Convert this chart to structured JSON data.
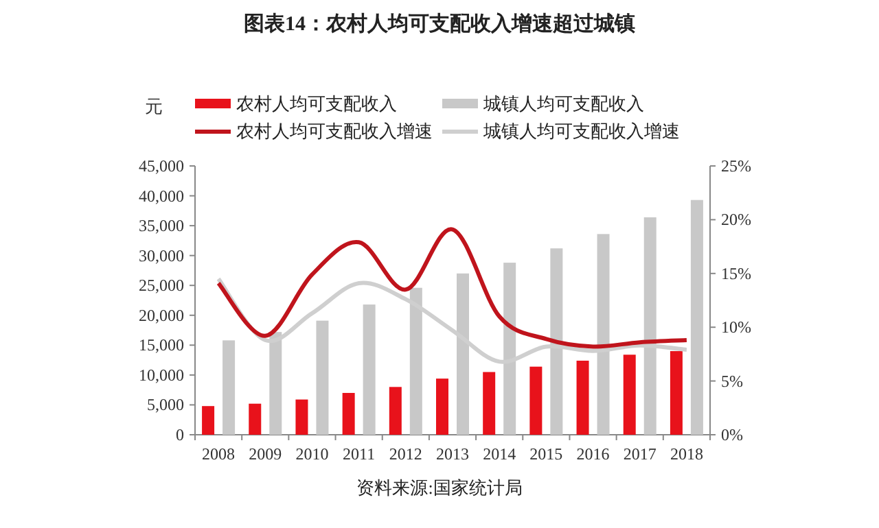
{
  "chart_data": {
    "type": "bar",
    "title": "图表14：农村人均可支配收入增速超过城镇",
    "ylabel": "元",
    "categories": [
      "2008",
      "2009",
      "2010",
      "2011",
      "2012",
      "2013",
      "2014",
      "2015",
      "2016",
      "2017",
      "2018"
    ],
    "series": [
      {
        "name": "农村人均可支配收入",
        "color": "#e8121b",
        "values": [
          4800,
          5200,
          5900,
          7000,
          8000,
          9400,
          10500,
          11400,
          12400,
          13400,
          14000
        ]
      },
      {
        "name": "城镇人均可支配收入",
        "color": "#c8c8c8",
        "values": [
          15800,
          17200,
          19100,
          21800,
          24600,
          27000,
          28800,
          31200,
          33600,
          36400,
          39300
        ]
      },
      {
        "name": "农村人均可支配收入增速",
        "type": "line",
        "axis": "y2",
        "color": "#c0141c",
        "values": [
          14.1,
          9.2,
          14.9,
          17.9,
          13.5,
          19.1,
          11.0,
          8.9,
          8.2,
          8.6,
          8.8
        ]
      },
      {
        "name": "城镇人均可支配收入增速",
        "type": "line",
        "axis": "y2",
        "color": "#cfcfcf",
        "values": [
          14.5,
          8.8,
          11.3,
          14.1,
          12.6,
          9.7,
          6.8,
          8.2,
          7.8,
          8.3,
          7.9
        ]
      }
    ],
    "ylim": [
      0,
      45000
    ],
    "yticks": [
      {
        "value": 0,
        "label": "0"
      },
      {
        "value": 5000,
        "label": "5,000"
      },
      {
        "value": 10000,
        "label": "10,000"
      },
      {
        "value": 15000,
        "label": "15,000"
      },
      {
        "value": 20000,
        "label": "20,000"
      },
      {
        "value": 25000,
        "label": "25,000"
      },
      {
        "value": 30000,
        "label": "30,000"
      },
      {
        "value": 35000,
        "label": "35,000"
      },
      {
        "value": 40000,
        "label": "40,000"
      },
      {
        "value": 45000,
        "label": "45,000"
      }
    ],
    "y2lim": [
      0,
      25
    ],
    "y2ticks": [
      {
        "value": 0,
        "label": "0%"
      },
      {
        "value": 5,
        "label": "5%"
      },
      {
        "value": 10,
        "label": "10%"
      },
      {
        "value": 15,
        "label": "15%"
      },
      {
        "value": 20,
        "label": "20%"
      },
      {
        "value": 25,
        "label": "25%"
      }
    ],
    "legend": "top",
    "grid": false,
    "annotations": [
      "资料来源:国家统计局"
    ]
  }
}
